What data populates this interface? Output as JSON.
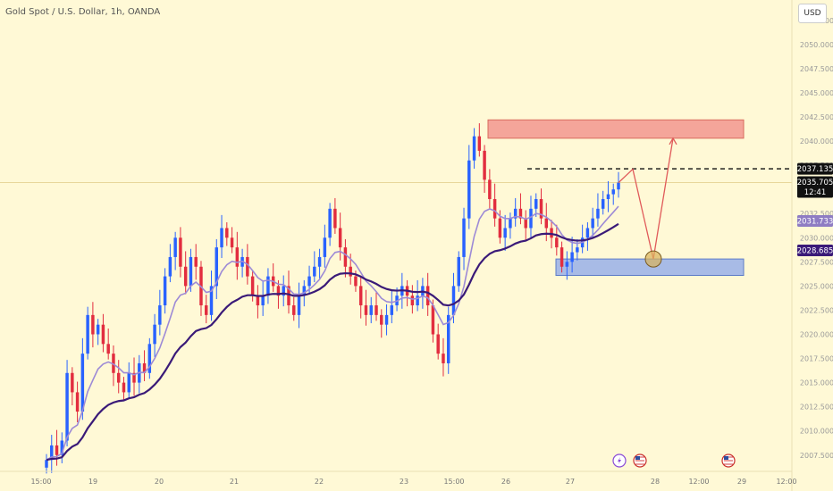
{
  "header": {
    "title": "Gold Spot / U.S. Dollar, 1h, OANDA",
    "currency": "USD"
  },
  "price_tags": [
    {
      "label": "2037.135",
      "color": "#111111"
    },
    {
      "label": "2035.705",
      "sub": "12:41",
      "color": "#111111"
    },
    {
      "label": "2031.733",
      "color": "#8e7cc3"
    },
    {
      "label": "2028.685",
      "color": "#3a1a78"
    }
  ],
  "events": [
    {
      "icon": "lightning-icon"
    },
    {
      "icon": "us-flag-icon"
    },
    {
      "icon": "us-flag-icon"
    }
  ],
  "chart_data": {
    "type": "candlestick",
    "title": "Gold Spot / U.S. Dollar, 1h, OANDA",
    "y_ticks": [
      "2052.500",
      "2050.000",
      "2047.500",
      "2045.000",
      "2042.500",
      "2040.000",
      "2037.500",
      "2035.000",
      "2032.500",
      "2030.000",
      "2027.500",
      "2025.000",
      "2022.500",
      "2020.000",
      "2017.500",
      "2015.000",
      "2012.500",
      "2010.000",
      "2007.500"
    ],
    "y_tick_values": [
      2052.5,
      2050,
      2047.5,
      2045,
      2042.5,
      2040,
      2037.5,
      2035,
      2032.5,
      2030,
      2027.5,
      2025,
      2022.5,
      2020,
      2017.5,
      2015,
      2012.5,
      2010,
      2007.5
    ],
    "x_ticks": [
      "15:00",
      "19",
      "20",
      "21",
      "22",
      "23",
      "15:00",
      "26",
      "27",
      "28",
      "12:00",
      "29",
      "12:00"
    ],
    "ylim": [
      2006,
      2053.5
    ],
    "colors": {
      "up": "#2962ff",
      "down": "#e22d3f",
      "fast_ma": "#9d8ad6",
      "slow_ma": "#3a1a78"
    },
    "resistance_zone": [
      2040.3,
      2042.2
    ],
    "support_zone": [
      2026.1,
      2027.8
    ],
    "target_level": 2037.135,
    "last_price": 2035.705,
    "fast_ma_last": 2031.733,
    "slow_ma_last": 2028.685,
    "close_series": [
      2007,
      2008.5,
      2007.5,
      2009,
      2016,
      2014,
      2012,
      2018,
      2022,
      2020,
      2021,
      2019,
      2018,
      2016,
      2015,
      2014,
      2016,
      2015,
      2017,
      2016,
      2019,
      2021,
      2023,
      2026,
      2028,
      2030,
      2027,
      2025,
      2028,
      2027,
      2023,
      2022,
      2025,
      2029,
      2031,
      2030,
      2029,
      2027,
      2028,
      2026,
      2024,
      2023,
      2024,
      2026,
      2025,
      2024,
      2025,
      2023,
      2022,
      2024,
      2025,
      2026,
      2027,
      2028,
      2030,
      2033,
      2031,
      2029,
      2027,
      2026,
      2025,
      2023,
      2022,
      2023,
      2022,
      2021,
      2022,
      2023,
      2024,
      2025,
      2024,
      2023,
      2024,
      2025,
      2023,
      2020,
      2018,
      2017,
      2022,
      2025,
      2028,
      2032,
      2038,
      2040.5,
      2039,
      2036,
      2034,
      2032,
      2030,
      2031,
      2032,
      2033,
      2032,
      2031,
      2033,
      2034,
      2032,
      2031,
      2030,
      2029,
      2027,
      2027.5,
      2028.5,
      2029,
      2030,
      2031,
      2032,
      2033,
      2034,
      2034.5,
      2035,
      2035.7
    ],
    "projection": [
      2035.7,
      2037.1,
      2027.8,
      2040.3
    ]
  }
}
